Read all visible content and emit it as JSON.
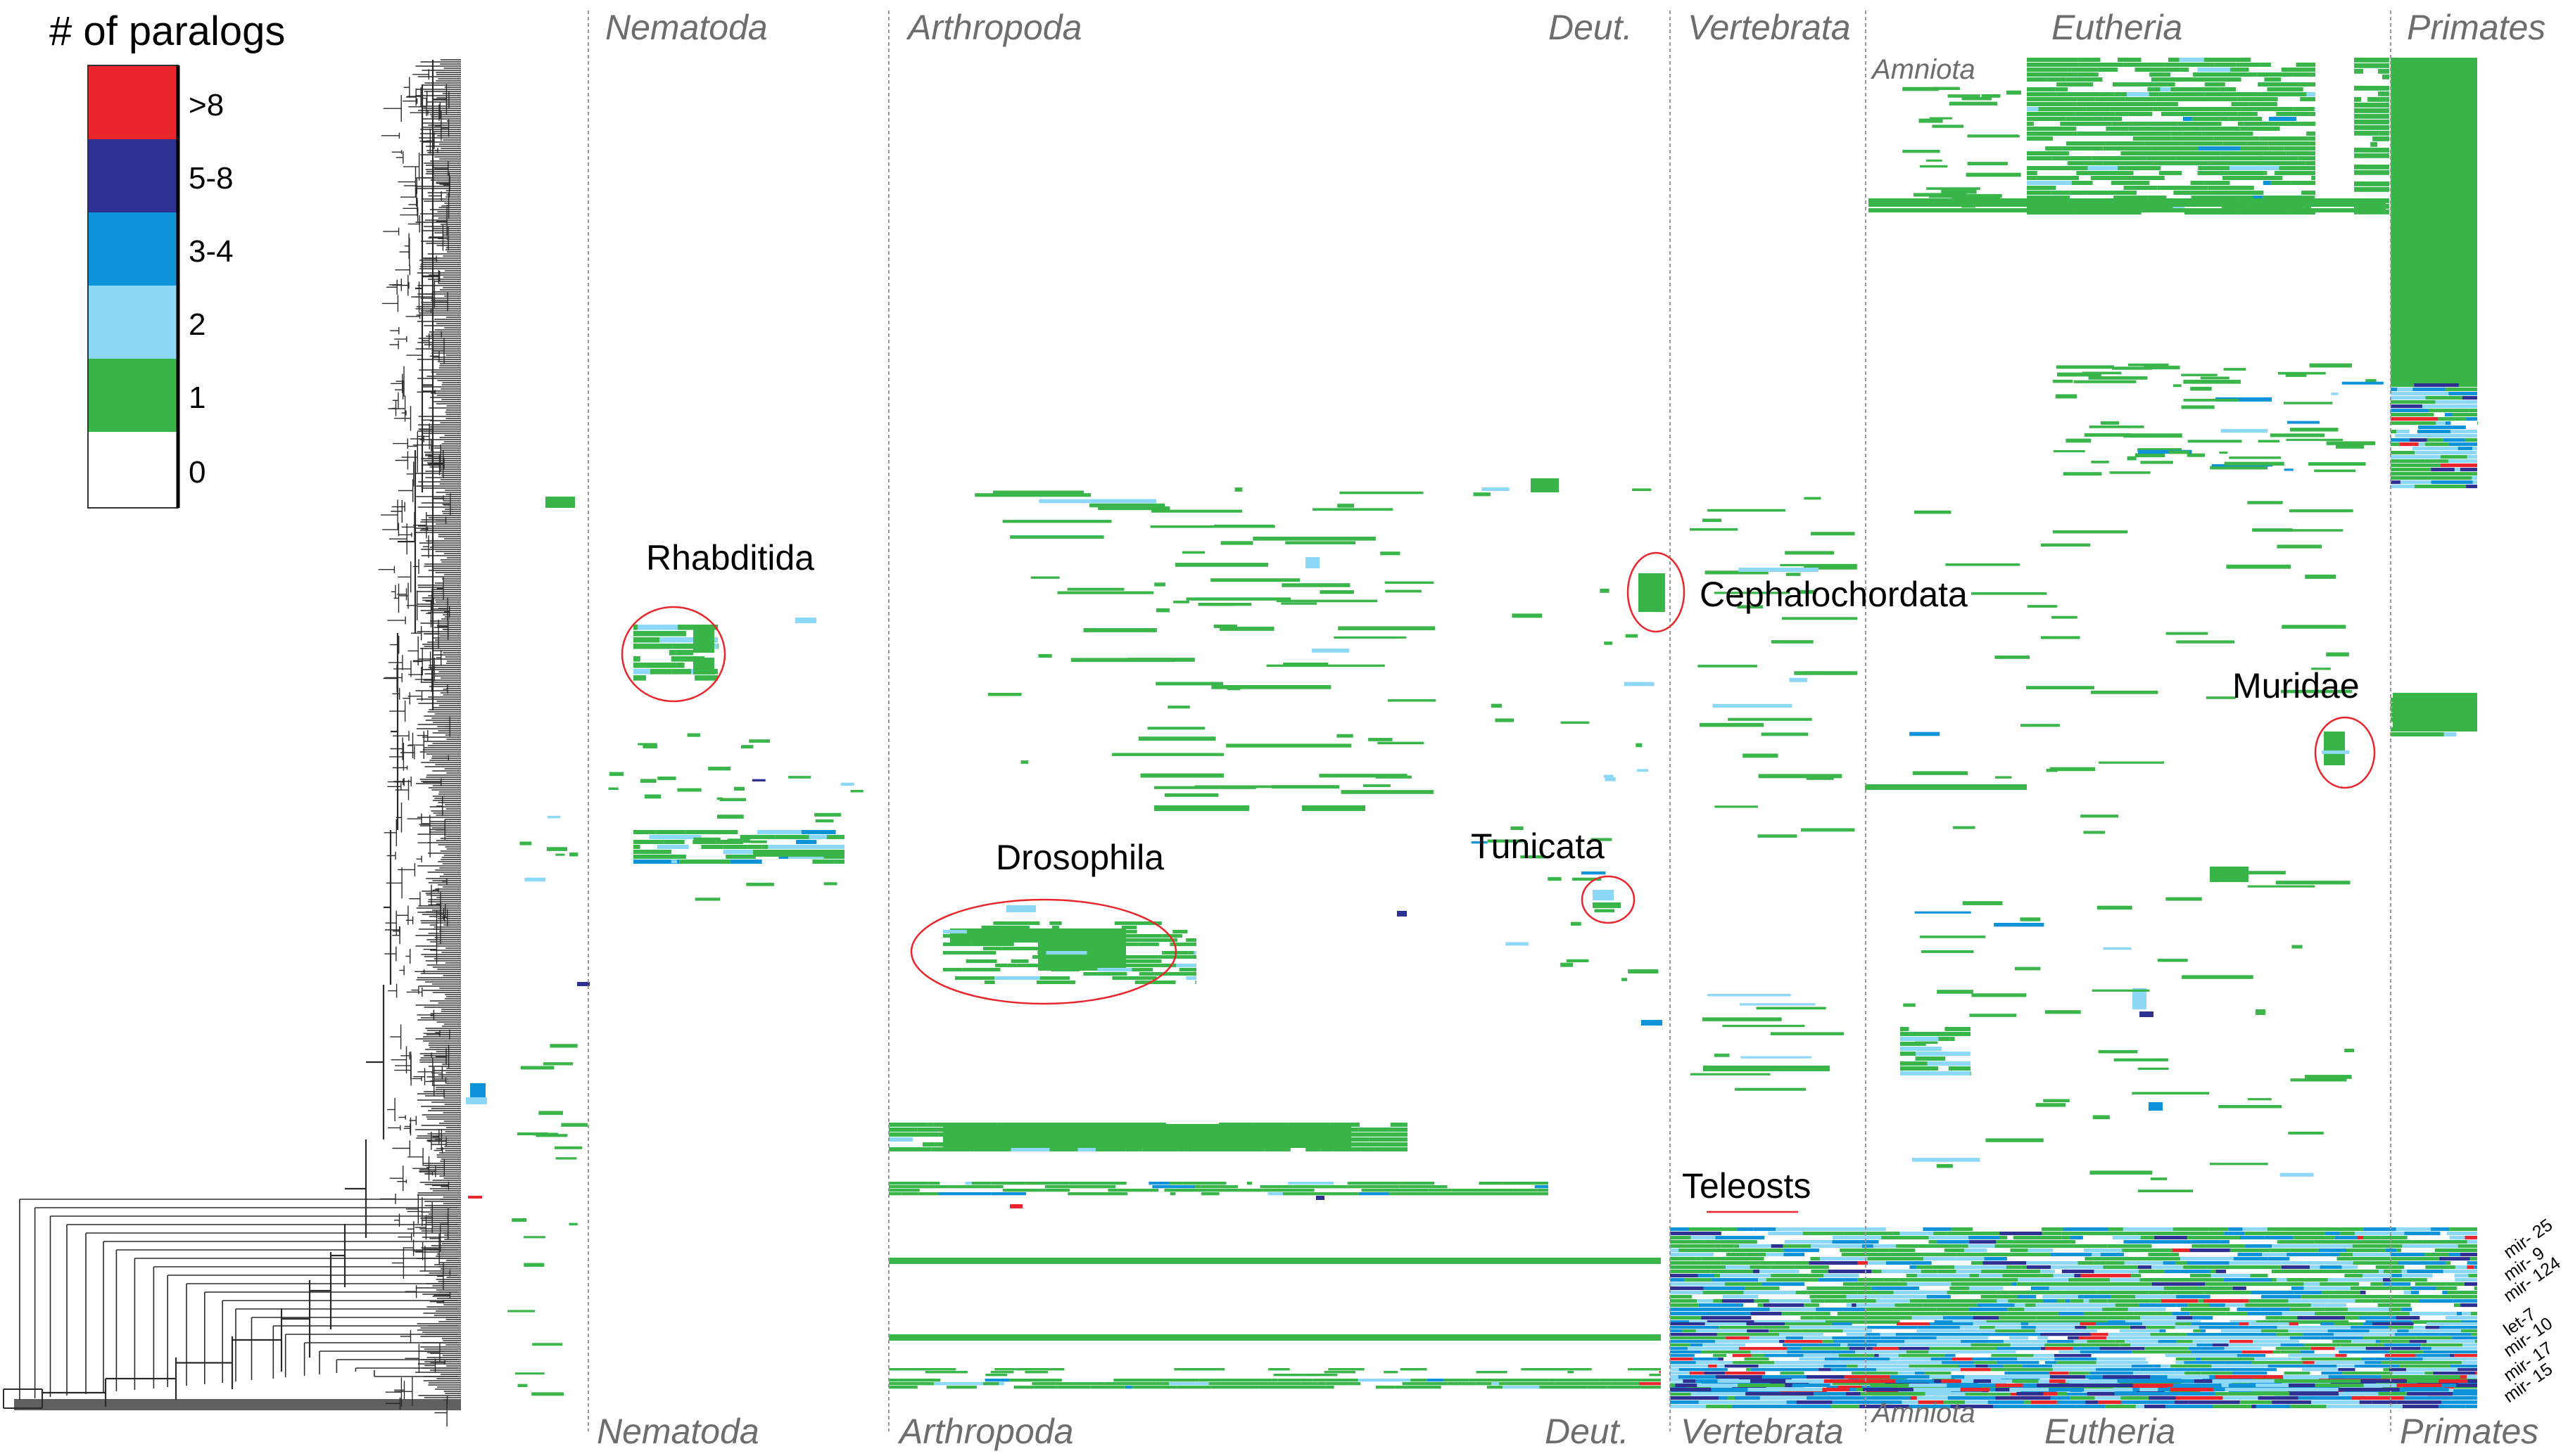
{
  "chart_data": {
    "type": "heatmap",
    "title": "# of paralogs",
    "legend": {
      "title": "# of paralogs",
      "levels": [
        {
          "label": ">8",
          "color": "#e8262b"
        },
        {
          "label": "5-8",
          "color": "#2e3192"
        },
        {
          "label": "3-4",
          "color": "#0f93d8"
        },
        {
          "label": "2",
          "color": "#8dd7f7"
        },
        {
          "label": "1",
          "color": "#39b54a"
        },
        {
          "label": "0",
          "color": "#ffffff"
        }
      ]
    },
    "clades_top": [
      "Nematoda",
      "Arthropoda",
      "Deut.",
      "Vertebrata",
      "Eutheria",
      "Primates"
    ],
    "clades_bottom": [
      "Nematoda",
      "Arthropoda",
      "Deut.",
      "Vertebrata",
      "Amniota",
      "Eutheria",
      "Primates"
    ],
    "sub_clade_label": "Amniota",
    "annotations": [
      "Rhabditida",
      "Cephalochordata",
      "Muridae",
      "Drosophila",
      "Tunicata",
      "Teleosts"
    ],
    "row_labels": [
      "mir- 25",
      "mir- 9",
      "mir- 124",
      "let-7",
      "mir- 10",
      "mir- 17",
      "mir- 15"
    ]
  }
}
